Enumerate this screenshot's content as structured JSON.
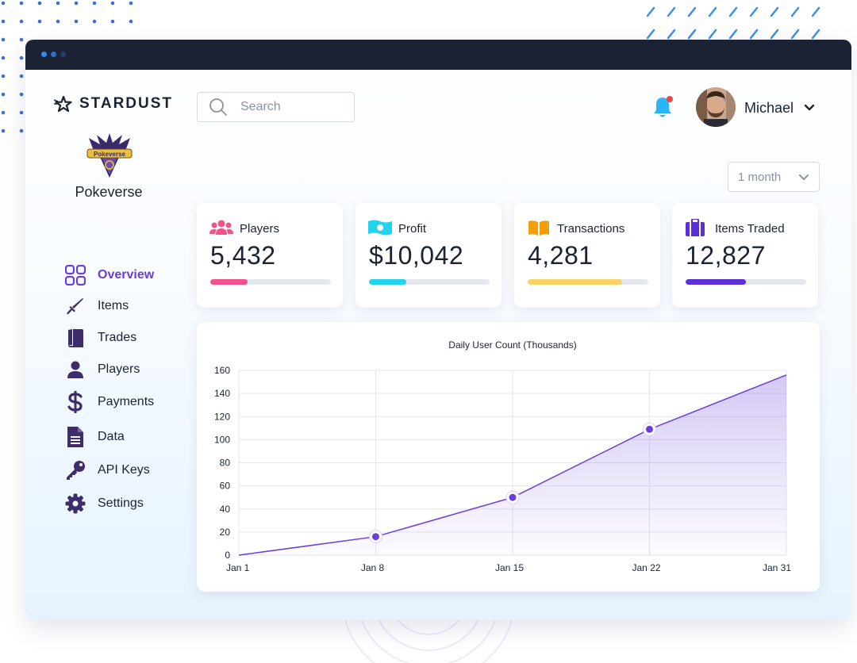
{
  "brand": {
    "name": "STARDUST"
  },
  "game": {
    "name": "Pokeverse",
    "logo_text": "Pokeverse"
  },
  "search": {
    "placeholder": "Search"
  },
  "user": {
    "name": "Michael"
  },
  "period": {
    "selected": "1 month"
  },
  "nav": {
    "items": [
      {
        "label": "Overview",
        "icon": "grid-icon",
        "active": true
      },
      {
        "label": "Items",
        "icon": "sword-icon",
        "active": false
      },
      {
        "label": "Trades",
        "icon": "book-icon",
        "active": false
      },
      {
        "label": "Players",
        "icon": "person-icon",
        "active": false
      },
      {
        "label": "Payments",
        "icon": "dollar-icon",
        "active": false
      },
      {
        "label": "Data",
        "icon": "document-icon",
        "active": false
      },
      {
        "label": "API Keys",
        "icon": "key-icon",
        "active": false
      },
      {
        "label": "Settings",
        "icon": "gear-icon",
        "active": false
      }
    ]
  },
  "cards": [
    {
      "title": "Players",
      "value": "5,432",
      "progress": 0.31,
      "color": "#f2528c",
      "icon": "people-icon"
    },
    {
      "title": "Profit",
      "value": "$10,042",
      "progress": 0.31,
      "color": "#22d3ee",
      "icon": "money-icon"
    },
    {
      "title": "Transactions",
      "value": "4,281",
      "progress": 0.78,
      "color": "#fbd266",
      "icon": "open-book-icon"
    },
    {
      "title": "Items Traded",
      "value": "12,827",
      "progress": 0.5,
      "color": "#5b2fd8",
      "icon": "briefcase-icon"
    }
  ],
  "colors": {
    "accent": "#6a3fd9",
    "dark": "#1b2233",
    "bell": "#29b6f6",
    "notification_dot": "#ef4444"
  },
  "chart_data": {
    "type": "area",
    "title": "Daily User Count (Thousands)",
    "x": [
      "Jan 1",
      "Jan 8",
      "Jan 15",
      "Jan 22",
      "Jan 31"
    ],
    "values": [
      0,
      16,
      50,
      109,
      156
    ],
    "markers": [
      false,
      true,
      true,
      true,
      false
    ],
    "ylim": [
      0,
      160
    ],
    "yticks": [
      0,
      20,
      40,
      60,
      80,
      100,
      120,
      140,
      160
    ],
    "xlabel": "",
    "ylabel": "",
    "grid": true,
    "color": "#6a3fd9"
  }
}
